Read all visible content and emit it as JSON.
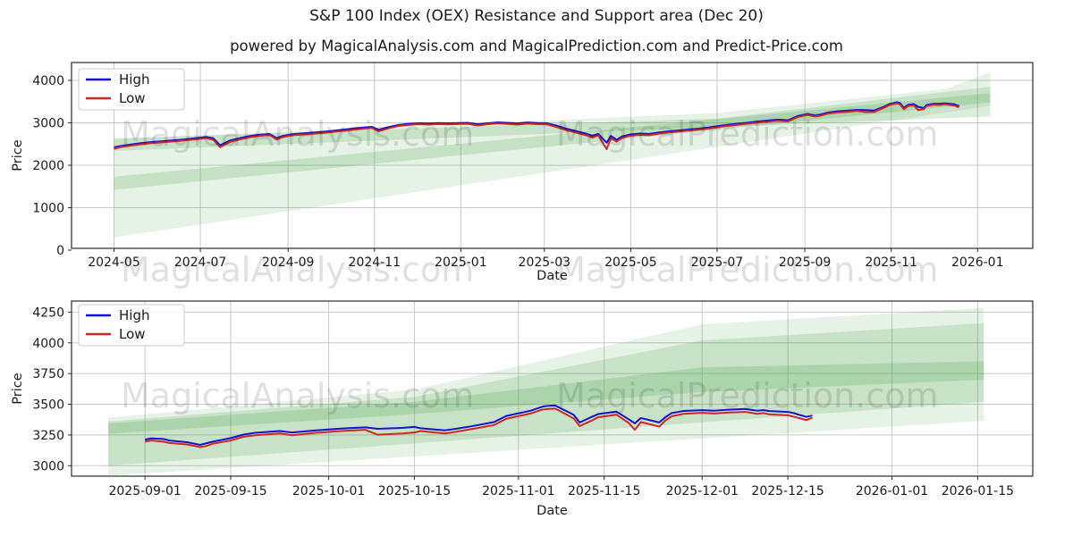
{
  "page": {
    "title": "S&P 100 Index (OEX) Resistance and Support area (Dec 20)",
    "subtitle": "powered by MagicalAnalysis.com and MagicalPrediction.com and Predict-Price.com"
  },
  "watermarks": [
    "MagicalAnalysis.com",
    "MagicalPrediction.com"
  ],
  "colors": {
    "high_line": "#1212cf",
    "low_line": "#cf2626",
    "band_green": "#4ca64c",
    "grid": "#c9c9c9",
    "spine": "#2b2b2b",
    "text": "#1a1a1a",
    "watermark": "rgba(0,0,0,0.12)",
    "legend_border": "#cccccc"
  },
  "chart_data": [
    {
      "type": "line",
      "title": "",
      "xlabel": "Date",
      "ylabel": "Price",
      "legend": [
        "High",
        "Low"
      ],
      "legend_position": "upper-left",
      "grid": true,
      "xlim": [
        "2024-04-01",
        "2026-02-09"
      ],
      "ylim": [
        0,
        4420
      ],
      "yticks": [
        0,
        1000,
        2000,
        3000,
        4000
      ],
      "xticks": [
        {
          "date": "2024-05-01",
          "label": "2024-05"
        },
        {
          "date": "2024-07-01",
          "label": "2024-07"
        },
        {
          "date": "2024-09-01",
          "label": "2024-09"
        },
        {
          "date": "2024-11-01",
          "label": "2024-11"
        },
        {
          "date": "2025-01-01",
          "label": "2025-01"
        },
        {
          "date": "2025-03-01",
          "label": "2025-03"
        },
        {
          "date": "2025-05-01",
          "label": "2025-05"
        },
        {
          "date": "2025-07-01",
          "label": "2025-07"
        },
        {
          "date": "2025-09-01",
          "label": "2025-09"
        },
        {
          "date": "2025-11-01",
          "label": "2025-11"
        },
        {
          "date": "2026-01-01",
          "label": "2026-01"
        }
      ],
      "bands": [
        {
          "alpha": 0.14,
          "top": [
            [
              "2024-05-01",
              2620
            ],
            [
              "2025-07-01",
              3230
            ],
            [
              "2025-12-10",
              3800
            ],
            [
              "2026-01-10",
              4190
            ]
          ],
          "bottom": [
            [
              "2024-05-01",
              300
            ],
            [
              "2026-01-10",
              3400
            ]
          ]
        },
        {
          "alpha": 0.2,
          "top": [
            [
              "2024-05-01",
              2630
            ],
            [
              "2025-07-01",
              3100
            ],
            [
              "2026-01-10",
              3850
            ]
          ],
          "bottom": [
            [
              "2024-05-01",
              2340
            ],
            [
              "2026-01-10",
              3150
            ]
          ]
        },
        {
          "alpha": 0.22,
          "top": [
            [
              "2024-05-01",
              1730
            ],
            [
              "2026-01-10",
              3700
            ]
          ],
          "bottom": [
            [
              "2024-05-01",
              1420
            ],
            [
              "2026-01-10",
              3480
            ]
          ]
        }
      ],
      "points": [
        [
          "2024-05-01",
          2420,
          2390
        ],
        [
          "2024-05-06",
          2455,
          2430
        ],
        [
          "2024-05-13",
          2490,
          2462
        ],
        [
          "2024-05-20",
          2520,
          2495
        ],
        [
          "2024-05-27",
          2545,
          2520
        ],
        [
          "2024-06-03",
          2562,
          2538
        ],
        [
          "2024-06-10",
          2580,
          2556
        ],
        [
          "2024-06-17",
          2600,
          2575
        ],
        [
          "2024-06-24",
          2622,
          2598
        ],
        [
          "2024-07-01",
          2650,
          2622
        ],
        [
          "2024-07-05",
          2665,
          2640
        ],
        [
          "2024-07-10",
          2640,
          2600
        ],
        [
          "2024-07-15",
          2470,
          2425
        ],
        [
          "2024-07-18",
          2520,
          2480
        ],
        [
          "2024-07-22",
          2585,
          2550
        ],
        [
          "2024-07-29",
          2640,
          2610
        ],
        [
          "2024-08-05",
          2690,
          2660
        ],
        [
          "2024-08-12",
          2720,
          2695
        ],
        [
          "2024-08-19",
          2735,
          2710
        ],
        [
          "2024-08-24",
          2640,
          2605
        ],
        [
          "2024-08-28",
          2690,
          2662
        ],
        [
          "2024-09-04",
          2730,
          2705
        ],
        [
          "2024-09-11",
          2750,
          2722
        ],
        [
          "2024-09-18",
          2768,
          2740
        ],
        [
          "2024-09-25",
          2785,
          2758
        ],
        [
          "2024-10-02",
          2808,
          2780
        ],
        [
          "2024-10-09",
          2835,
          2808
        ],
        [
          "2024-10-16",
          2860,
          2832
        ],
        [
          "2024-10-23",
          2885,
          2858
        ],
        [
          "2024-10-30",
          2905,
          2878
        ],
        [
          "2024-11-04",
          2835,
          2800
        ],
        [
          "2024-11-11",
          2900,
          2872
        ],
        [
          "2024-11-18",
          2950,
          2925
        ],
        [
          "2024-11-25",
          2975,
          2950
        ],
        [
          "2024-12-02",
          2990,
          2965
        ],
        [
          "2024-12-09",
          2985,
          2958
        ],
        [
          "2024-12-16",
          2995,
          2970
        ],
        [
          "2024-12-23",
          2988,
          2962
        ],
        [
          "2024-12-30",
          2995,
          2970
        ],
        [
          "2025-01-06",
          3000,
          2975
        ],
        [
          "2025-01-13",
          2965,
          2935
        ],
        [
          "2025-01-20",
          2990,
          2965
        ],
        [
          "2025-01-27",
          3010,
          2985
        ],
        [
          "2025-02-03",
          3000,
          2972
        ],
        [
          "2025-02-10",
          2985,
          2958
        ],
        [
          "2025-02-17",
          3008,
          2982
        ],
        [
          "2025-02-24",
          2995,
          2968
        ],
        [
          "2025-03-03",
          2990,
          2962
        ],
        [
          "2025-03-10",
          2930,
          2895
        ],
        [
          "2025-03-17",
          2855,
          2820
        ],
        [
          "2025-03-24",
          2800,
          2762
        ],
        [
          "2025-03-31",
          2740,
          2700
        ],
        [
          "2025-04-04",
          2695,
          2650
        ],
        [
          "2025-04-08",
          2740,
          2705
        ],
        [
          "2025-04-14",
          2530,
          2380
        ],
        [
          "2025-04-17",
          2690,
          2640
        ],
        [
          "2025-04-21",
          2600,
          2555
        ],
        [
          "2025-04-25",
          2680,
          2645
        ],
        [
          "2025-04-30",
          2722,
          2690
        ],
        [
          "2025-05-07",
          2748,
          2718
        ],
        [
          "2025-05-14",
          2740,
          2708
        ],
        [
          "2025-05-21",
          2772,
          2745
        ],
        [
          "2025-05-28",
          2800,
          2772
        ],
        [
          "2025-06-04",
          2820,
          2795
        ],
        [
          "2025-06-11",
          2845,
          2818
        ],
        [
          "2025-06-18",
          2862,
          2836
        ],
        [
          "2025-06-25",
          2890,
          2865
        ],
        [
          "2025-07-02",
          2925,
          2900
        ],
        [
          "2025-07-09",
          2955,
          2930
        ],
        [
          "2025-07-16",
          2980,
          2955
        ],
        [
          "2025-07-23",
          3005,
          2980
        ],
        [
          "2025-07-30",
          3030,
          3005
        ],
        [
          "2025-08-06",
          3055,
          3028
        ],
        [
          "2025-08-13",
          3075,
          3048
        ],
        [
          "2025-08-20",
          3060,
          3032
        ],
        [
          "2025-08-27",
          3160,
          3135
        ],
        [
          "2025-09-03",
          3210,
          3185
        ],
        [
          "2025-09-08",
          3175,
          3150
        ],
        [
          "2025-09-12",
          3195,
          3168
        ],
        [
          "2025-09-17",
          3240,
          3215
        ],
        [
          "2025-09-24",
          3270,
          3245
        ],
        [
          "2025-10-01",
          3285,
          3258
        ],
        [
          "2025-10-08",
          3305,
          3280
        ],
        [
          "2025-10-14",
          3300,
          3252
        ],
        [
          "2025-10-20",
          3290,
          3255
        ],
        [
          "2025-10-27",
          3380,
          3355
        ],
        [
          "2025-10-31",
          3445,
          3420
        ],
        [
          "2025-11-05",
          3485,
          3460
        ],
        [
          "2025-11-07",
          3470,
          3440
        ],
        [
          "2025-11-10",
          3355,
          3320
        ],
        [
          "2025-11-13",
          3425,
          3398
        ],
        [
          "2025-11-17",
          3440,
          3410
        ],
        [
          "2025-11-20",
          3375,
          3300
        ],
        [
          "2025-11-24",
          3348,
          3320
        ],
        [
          "2025-11-26",
          3420,
          3395
        ],
        [
          "2025-12-01",
          3450,
          3428
        ],
        [
          "2025-12-05",
          3448,
          3420
        ],
        [
          "2025-12-09",
          3460,
          3435
        ],
        [
          "2025-12-12",
          3450,
          3420
        ],
        [
          "2025-12-16",
          3435,
          3405
        ],
        [
          "2025-12-18",
          3400,
          3372
        ],
        [
          "2025-12-19",
          3415,
          3392
        ]
      ]
    },
    {
      "type": "line",
      "title": "",
      "xlabel": "Date",
      "ylabel": "Price",
      "legend": [
        "High",
        "Low"
      ],
      "legend_position": "upper-left",
      "grid": true,
      "xlim": [
        "2025-08-20",
        "2026-01-24"
      ],
      "ylim": [
        2915,
        4340
      ],
      "yticks": [
        3000,
        3250,
        3500,
        3750,
        4000,
        4250
      ],
      "xticks": [
        {
          "date": "2025-09-01",
          "label": "2025-09-01"
        },
        {
          "date": "2025-09-15",
          "label": "2025-09-15"
        },
        {
          "date": "2025-10-01",
          "label": "2025-10-01"
        },
        {
          "date": "2025-10-15",
          "label": "2025-10-15"
        },
        {
          "date": "2025-11-01",
          "label": "2025-11-01"
        },
        {
          "date": "2025-11-15",
          "label": "2025-11-15"
        },
        {
          "date": "2025-12-01",
          "label": "2025-12-01"
        },
        {
          "date": "2025-12-15",
          "label": "2025-12-15"
        },
        {
          "date": "2026-01-01",
          "label": "2026-01-01"
        },
        {
          "date": "2026-01-15",
          "label": "2026-01-15"
        }
      ],
      "bands": [
        {
          "alpha": 0.14,
          "top": [
            [
              "2025-08-26",
              3390
            ],
            [
              "2025-10-15",
              3620
            ],
            [
              "2025-12-01",
              4150
            ],
            [
              "2026-01-16",
              4285
            ]
          ],
          "bottom": [
            [
              "2025-08-26",
              2920
            ],
            [
              "2026-01-16",
              3365
            ]
          ]
        },
        {
          "alpha": 0.2,
          "top": [
            [
              "2025-08-26",
              3360
            ],
            [
              "2025-10-15",
              3560
            ],
            [
              "2025-12-01",
              4020
            ],
            [
              "2026-01-16",
              4160
            ]
          ],
          "bottom": [
            [
              "2025-08-26",
              3000
            ],
            [
              "2026-01-16",
              3520
            ]
          ]
        },
        {
          "alpha": 0.22,
          "top": [
            [
              "2025-08-26",
              3345
            ],
            [
              "2025-10-15",
              3520
            ],
            [
              "2025-12-01",
              3800
            ],
            [
              "2026-01-16",
              3850
            ]
          ],
          "bottom": [
            [
              "2025-08-26",
              3260
            ],
            [
              "2025-10-15",
              3420
            ],
            [
              "2025-12-01",
              3600
            ],
            [
              "2026-01-16",
              3700
            ]
          ]
        }
      ],
      "points": [
        [
          "2025-09-01",
          3212,
          3196
        ],
        [
          "2025-09-02",
          3222,
          3205
        ],
        [
          "2025-09-04",
          3218,
          3196
        ],
        [
          "2025-09-05",
          3205,
          3185
        ],
        [
          "2025-09-08",
          3190,
          3172
        ],
        [
          "2025-09-10",
          3170,
          3152
        ],
        [
          "2025-09-11",
          3182,
          3160
        ],
        [
          "2025-09-12",
          3195,
          3178
        ],
        [
          "2025-09-15",
          3225,
          3205
        ],
        [
          "2025-09-17",
          3252,
          3235
        ],
        [
          "2025-09-19",
          3268,
          3248
        ],
        [
          "2025-09-23",
          3282,
          3262
        ],
        [
          "2025-09-25",
          3270,
          3248
        ],
        [
          "2025-09-29",
          3288,
          3268
        ],
        [
          "2025-10-01",
          3295,
          3275
        ],
        [
          "2025-10-03",
          3302,
          3282
        ],
        [
          "2025-10-07",
          3312,
          3292
        ],
        [
          "2025-10-09",
          3300,
          3252
        ],
        [
          "2025-10-13",
          3308,
          3262
        ],
        [
          "2025-10-15",
          3316,
          3270
        ],
        [
          "2025-10-16",
          3305,
          3282
        ],
        [
          "2025-10-20",
          3288,
          3262
        ],
        [
          "2025-10-22",
          3302,
          3278
        ],
        [
          "2025-10-24",
          3318,
          3295
        ],
        [
          "2025-10-28",
          3355,
          3330
        ],
        [
          "2025-10-30",
          3405,
          3382
        ],
        [
          "2025-11-03",
          3448,
          3425
        ],
        [
          "2025-11-05",
          3482,
          3458
        ],
        [
          "2025-11-06",
          3488,
          3462
        ],
        [
          "2025-11-07",
          3490,
          3465
        ],
        [
          "2025-11-10",
          3415,
          3385
        ],
        [
          "2025-11-11",
          3352,
          3322
        ],
        [
          "2025-11-13",
          3398,
          3368
        ],
        [
          "2025-11-14",
          3420,
          3395
        ],
        [
          "2025-11-17",
          3440,
          3415
        ],
        [
          "2025-11-19",
          3378,
          3348
        ],
        [
          "2025-11-20",
          3345,
          3292
        ],
        [
          "2025-11-21",
          3388,
          3355
        ],
        [
          "2025-11-24",
          3352,
          3318
        ],
        [
          "2025-11-25",
          3395,
          3368
        ],
        [
          "2025-11-26",
          3428,
          3402
        ],
        [
          "2025-11-28",
          3446,
          3422
        ],
        [
          "2025-12-01",
          3452,
          3430
        ],
        [
          "2025-12-03",
          3448,
          3425
        ],
        [
          "2025-12-05",
          3455,
          3432
        ],
        [
          "2025-12-08",
          3462,
          3438
        ],
        [
          "2025-12-09",
          3455,
          3430
        ],
        [
          "2025-12-10",
          3448,
          3422
        ],
        [
          "2025-12-11",
          3452,
          3428
        ],
        [
          "2025-12-12",
          3445,
          3418
        ],
        [
          "2025-12-15",
          3438,
          3410
        ],
        [
          "2025-12-16",
          3428,
          3398
        ],
        [
          "2025-12-17",
          3412,
          3385
        ],
        [
          "2025-12-18",
          3398,
          3372
        ],
        [
          "2025-12-19",
          3408,
          3390
        ]
      ]
    }
  ]
}
